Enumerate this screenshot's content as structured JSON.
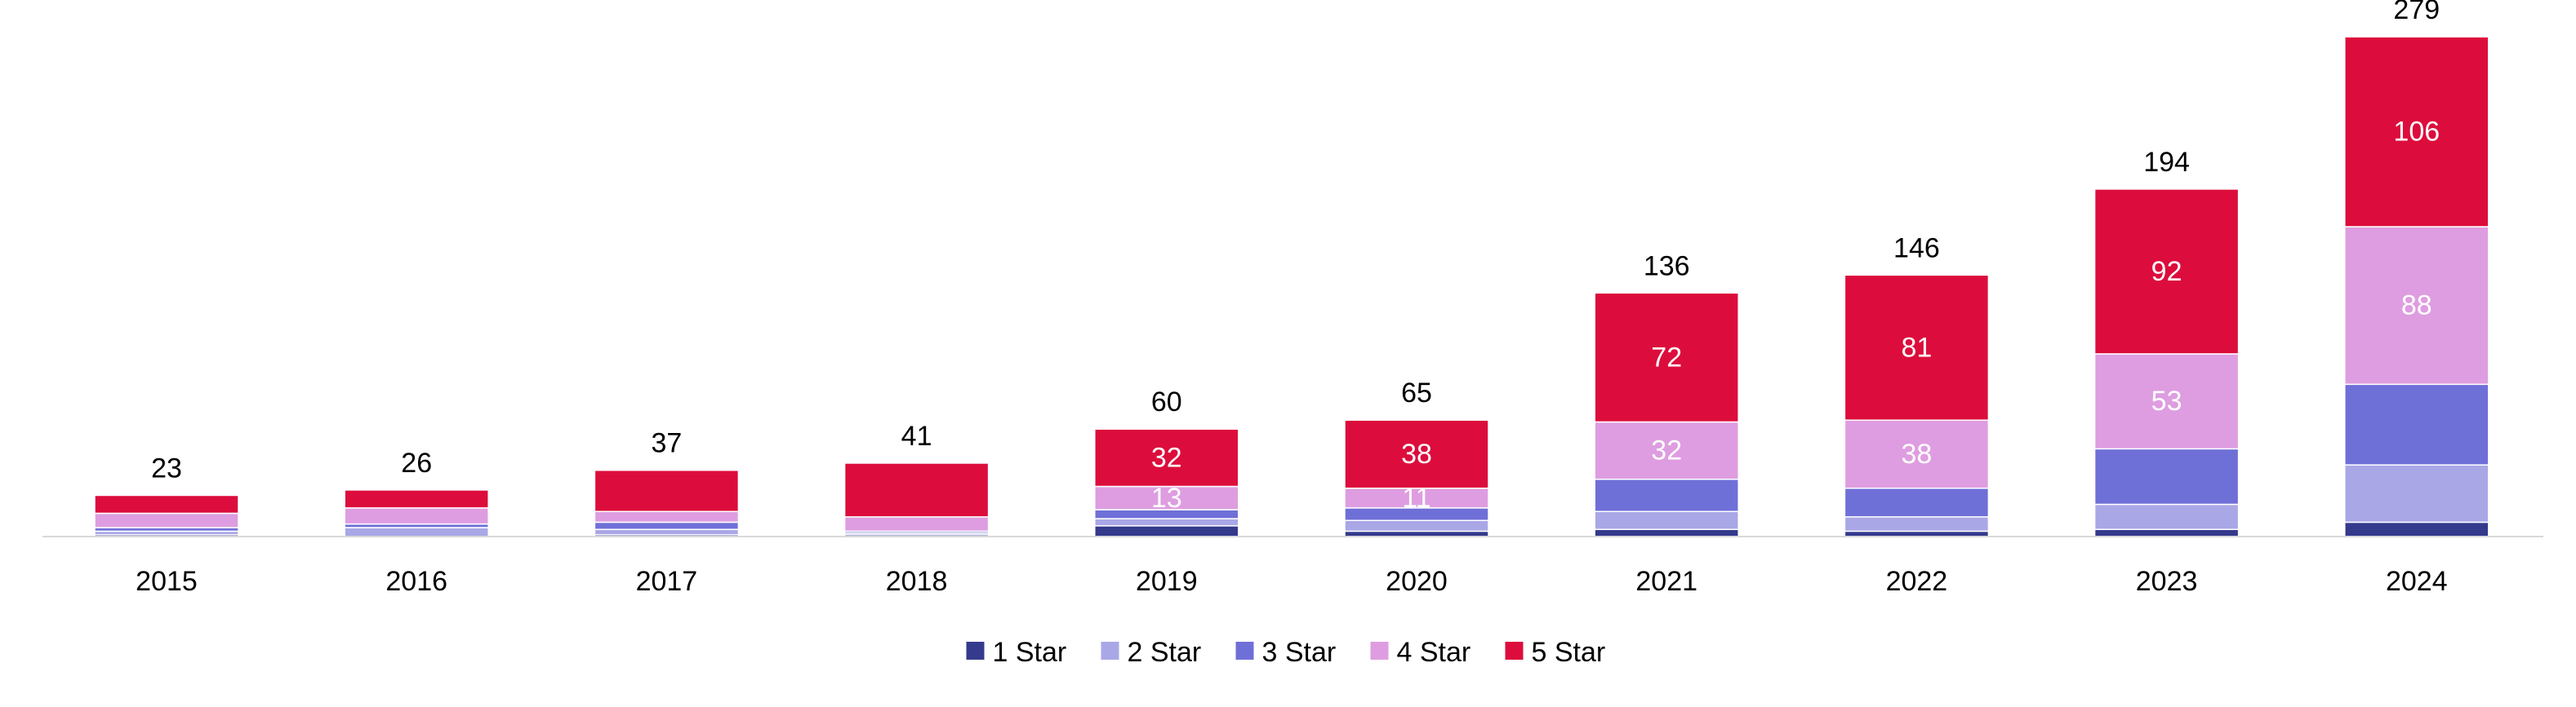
{
  "chart_data": {
    "type": "bar",
    "stacked": true,
    "title": "",
    "xlabel": "",
    "ylabel": "",
    "ylim": [
      0,
      285
    ],
    "grid": false,
    "legend_position": "bottom",
    "categories": [
      "2015",
      "2016",
      "2017",
      "2018",
      "2019",
      "2020",
      "2021",
      "2022",
      "2023",
      "2024"
    ],
    "totals": [
      23,
      26,
      37,
      41,
      60,
      65,
      136,
      146,
      194,
      279
    ],
    "series": [
      {
        "name": "1 Star",
        "color": "#343A8C",
        "values": [
          1,
          0,
          1,
          1,
          6,
          3,
          4,
          3,
          4,
          8
        ],
        "labels": [
          null,
          null,
          null,
          null,
          null,
          null,
          null,
          null,
          null,
          null
        ]
      },
      {
        "name": "2 Star",
        "color": "#A9A7E6",
        "values": [
          2,
          5,
          3,
          1,
          4,
          6,
          10,
          8,
          14,
          32
        ],
        "labels": [
          null,
          null,
          null,
          null,
          null,
          null,
          null,
          null,
          null,
          null
        ]
      },
      {
        "name": "3 Star",
        "color": "#6F6FD8",
        "values": [
          2,
          2,
          4,
          1,
          5,
          7,
          18,
          16,
          31,
          45
        ],
        "labels": [
          null,
          null,
          null,
          null,
          null,
          null,
          null,
          null,
          null,
          null
        ]
      },
      {
        "name": "4 Star",
        "color": "#DE9DE0",
        "values": [
          8,
          9,
          6,
          8,
          13,
          11,
          32,
          38,
          53,
          88
        ],
        "labels": [
          null,
          null,
          null,
          null,
          "13",
          "11",
          "32",
          "38",
          "53",
          "88"
        ]
      },
      {
        "name": "5 Star",
        "color": "#DC0D3C",
        "values": [
          10,
          10,
          23,
          30,
          32,
          38,
          72,
          81,
          92,
          106
        ],
        "labels": [
          null,
          null,
          null,
          null,
          "32",
          "38",
          "72",
          "81",
          "92",
          "106"
        ]
      }
    ]
  }
}
